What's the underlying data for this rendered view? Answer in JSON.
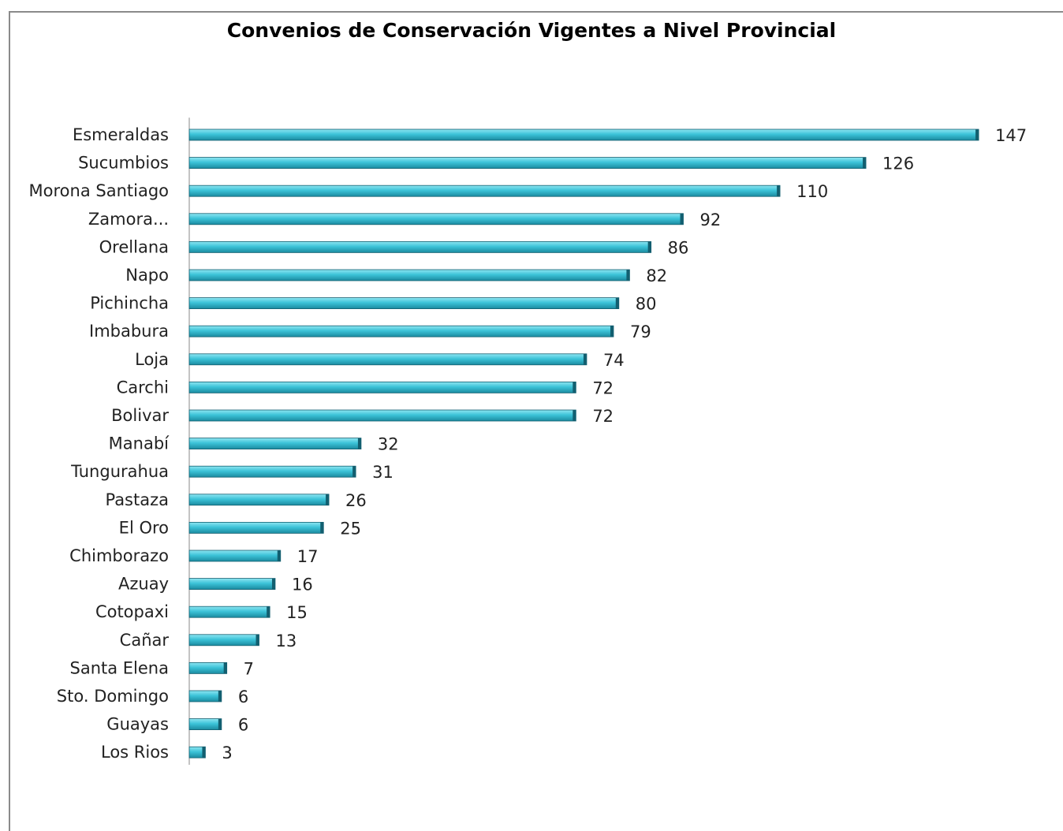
{
  "chart_data": {
    "type": "bar",
    "orientation": "horizontal",
    "title": "Convenios de Conservación Vigentes a Nivel Provincial",
    "xlabel": "",
    "ylabel": "",
    "categories": [
      "Esmeraldas",
      "Sucumbios",
      "Morona Santiago",
      "Zamora...",
      "Orellana",
      "Napo",
      "Pichincha",
      "Imbabura",
      "Loja",
      "Carchi",
      "Bolivar",
      "Manabí",
      "Tungurahua",
      "Pastaza",
      "El Oro",
      "Chimborazo",
      "Azuay",
      "Cotopaxi",
      "Cañar",
      "Santa Elena",
      "Sto. Domingo",
      "Guayas",
      "Los Rios"
    ],
    "values": [
      147,
      126,
      110,
      92,
      86,
      82,
      80,
      79,
      74,
      72,
      72,
      32,
      31,
      26,
      25,
      17,
      16,
      15,
      13,
      7,
      6,
      6,
      3
    ],
    "data_labels": [
      "147",
      "126",
      "110",
      "92",
      "86",
      "82",
      "80",
      "79",
      "74",
      "72",
      "72",
      "32",
      "31",
      "26",
      "25",
      "17",
      "16",
      "15",
      "13",
      "7",
      "6",
      "6",
      "3"
    ],
    "xlim": [
      0,
      147
    ],
    "grid": false,
    "legend": "none",
    "colors": {
      "bar_light": "#8fe6f2",
      "bar_mid": "#3cc3d8",
      "bar_dark": "#1b8a9f",
      "bar_edge": "#125f70",
      "axis": "#8a8a8a"
    }
  }
}
